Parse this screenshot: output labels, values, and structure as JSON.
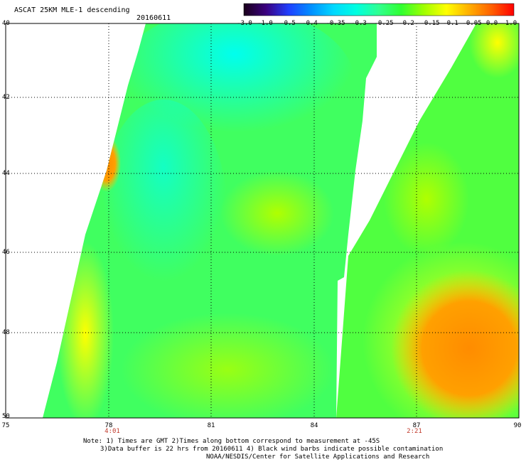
{
  "header": {
    "title": "ASCAT 25KM MLE-1 descending",
    "date": "20160611"
  },
  "colorbar": {
    "labels": [
      "-3.0",
      "-1.0",
      "-0.5",
      "-0.4",
      "-0.35",
      "-0.3",
      "-0.25",
      "-0.2",
      "-0.15",
      "-0.1",
      "-0.05",
      "0.0",
      "1.0"
    ],
    "colors": [
      "#1a001a",
      "#3b0080",
      "#2040ff",
      "#0090ff",
      "#00d8ff",
      "#00ffe0",
      "#30ff90",
      "#30ff30",
      "#a0ff00",
      "#ffff00",
      "#ffb000",
      "#ff6000",
      "#ff0000"
    ]
  },
  "axes": {
    "lat_labels": [
      "40",
      "42",
      "44",
      "46",
      "48",
      "50"
    ],
    "lon_labels": [
      "75",
      "78",
      "81",
      "84",
      "87",
      "90"
    ]
  },
  "pass_times": [
    {
      "lon": "78",
      "label": "4:01"
    },
    {
      "lon": "87",
      "label": "2:21"
    }
  ],
  "notes": {
    "line1": "Note: 1) Times are GMT 2)Times along bottom correspond to measurement at -45S",
    "line2": "3)Data buffer is 22 hrs from 20160611 4) Black wind barbs indicate possible contamination",
    "line3": "NOAA/NESDIS/Center for Satellite Applications and Research"
  }
}
